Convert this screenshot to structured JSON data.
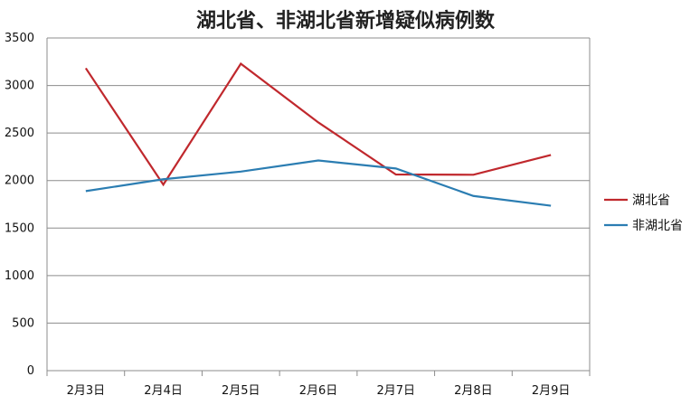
{
  "chart_data": {
    "type": "line",
    "title": "湖北省、非湖北省新增疑似病例数",
    "categories": [
      "2月3日",
      "2月4日",
      "2月5日",
      "2月6日",
      "2月7日",
      "2月8日",
      "2月9日"
    ],
    "series": [
      {
        "name": "湖北省",
        "color": "#c0282d",
        "values": [
          3182,
          1957,
          3229,
          2611,
          2064,
          2061,
          2269
        ]
      },
      {
        "name": "非湖北省",
        "color": "#2b7db2",
        "values": [
          1889,
          2014,
          2094,
          2211,
          2127,
          1838,
          1735
        ]
      }
    ],
    "ylim": [
      0,
      3500
    ],
    "yticks": [
      0,
      500,
      1000,
      1500,
      2000,
      2500,
      3000,
      3500
    ],
    "grid": true,
    "legend": "right"
  }
}
